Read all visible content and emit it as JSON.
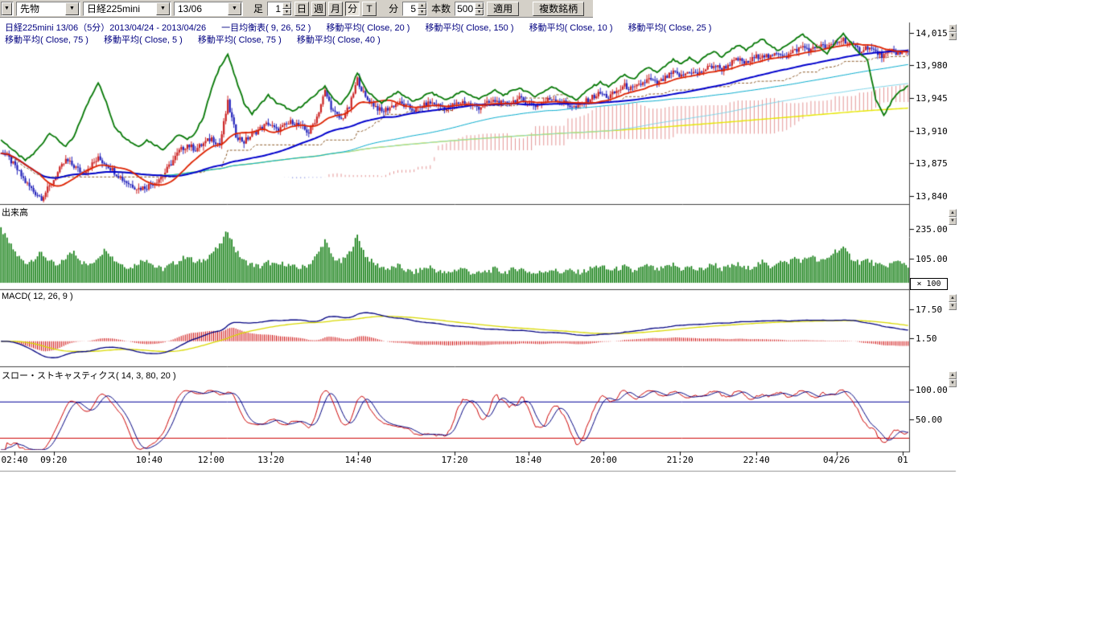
{
  "toolbar": {
    "stub_arrow": "▼",
    "market_select": "先物",
    "symbol_select": "日経225mini",
    "contract_select": "13/06",
    "bar_label": "足",
    "bar_interval": "1",
    "period_buttons": [
      "日",
      "週",
      "月",
      "分",
      "T"
    ],
    "minute_label": "分",
    "minute_interval": "5",
    "count_label": "本数",
    "count_value": "500",
    "apply_button": "適用",
    "multi_symbol_button": "複数銘柄"
  },
  "header": {
    "title": "日経225mini 13/06（5分）2013/04/24 - 2013/04/26",
    "row1": [
      "一目均衡表( 9, 26, 52 )",
      "移動平均( Close, 20 )",
      "移動平均( Close, 150 )",
      "移動平均( Close, 10 )",
      "移動平均( Close, 25 )"
    ],
    "row2": [
      "移動平均( Close, 75 )",
      "移動平均( Close, 5 )",
      "移動平均( Close, 75 )",
      "移動平均( Close, 40 )"
    ]
  },
  "panes": {
    "volume_label": "出来高",
    "macd_label": "MACD( 12, 26, 9 )",
    "stoch_label": "スロー・ストキャスティクス( 14, 3, 80, 20 )",
    "volume_multiplier": "× 100"
  },
  "chart_data": {
    "type": "candlestick",
    "title": "日経225mini 13/06（5分）2013/04/24 - 2013/04/26",
    "bars_displayed": 500,
    "price_pane": {
      "ylim": [
        13833,
        14026
      ],
      "yticks": [
        {
          "v": 14015,
          "label": "14,015"
        },
        {
          "v": 13980,
          "label": "13,980"
        },
        {
          "v": 13945,
          "label": "13,945"
        },
        {
          "v": 13910,
          "label": "13,910"
        },
        {
          "v": 13875,
          "label": "13,875"
        },
        {
          "v": 13840,
          "label": "13,840"
        }
      ],
      "close": [
        13888,
        13880,
        13868,
        13855,
        13845,
        13838,
        13850,
        13865,
        13878,
        13872,
        13865,
        13872,
        13880,
        13874,
        13866,
        13858,
        13852,
        13848,
        13850,
        13855,
        13862,
        13875,
        13888,
        13895,
        13890,
        13896,
        13902,
        13895,
        13940,
        13905,
        13898,
        13906,
        13912,
        13918,
        13910,
        13915,
        13920,
        13914,
        13908,
        13925,
        13952,
        13930,
        13922,
        13935,
        13965,
        13945,
        13938,
        13930,
        13935,
        13940,
        13936,
        13932,
        13936,
        13940,
        13937,
        13934,
        13938,
        13941,
        13938,
        13935,
        13939,
        13942,
        13938,
        13941,
        13944,
        13940,
        13937,
        13941,
        13945,
        13942,
        13938,
        13934,
        13940,
        13946,
        13950,
        13946,
        13952,
        13958,
        13954,
        13960,
        13965,
        13960,
        13966,
        13972,
        13968,
        13974,
        13970,
        13976,
        13980,
        13976,
        13982,
        13986,
        13982,
        13988,
        13992,
        13988,
        13994,
        13990,
        13996,
        14000,
        13996,
        14002,
        13998,
        14004,
        14008,
        14002,
        13996,
        14000,
        13994,
        13990,
        13996,
        13992,
        13995
      ],
      "overlay_green": [
        13900,
        13893,
        13885,
        13878,
        13885,
        13895,
        13908,
        13900,
        13893,
        13903,
        13925,
        13945,
        13962,
        13940,
        13915,
        13905,
        13898,
        13893,
        13900,
        13895,
        13890,
        13898,
        13906,
        13900,
        13908,
        13925,
        13955,
        13978,
        13992,
        13965,
        13940,
        13928,
        13938,
        13948,
        13940,
        13936,
        13930,
        13936,
        13942,
        13950,
        13958,
        13944,
        13938,
        13950,
        13972,
        13955,
        13946,
        13940,
        13946,
        13952,
        13946,
        13941,
        13946,
        13951,
        13947,
        13943,
        13948,
        13952,
        13948,
        13944,
        13949,
        13953,
        13948,
        13952,
        13956,
        13951,
        13947,
        13952,
        13957,
        13953,
        13948,
        13943,
        13950,
        13957,
        13962,
        13957,
        13964,
        13970,
        13965,
        13972,
        13978,
        13972,
        13979,
        13986,
        13981,
        13988,
        13983,
        13990,
        13995,
        13989,
        13996,
        14002,
        13996,
        14003,
        14008,
        14002,
        13995,
        14002,
        14008,
        14013,
        14006,
        13999,
        13993,
        14004,
        14014,
        14004,
        13992,
        13986,
        13944,
        13926,
        13942,
        13952,
        13958
      ]
    },
    "volume_pane": {
      "ylim": [
        0,
        330
      ],
      "yticks": [
        {
          "v": 235,
          "label": "235.00"
        },
        {
          "v": 105,
          "label": "105.00"
        }
      ],
      "multiplier_label": "× 100",
      "values": [
        235,
        175,
        120,
        85,
        105,
        130,
        95,
        70,
        110,
        140,
        90,
        75,
        115,
        150,
        100,
        80,
        65,
        90,
        105,
        70,
        60,
        80,
        95,
        120,
        85,
        100,
        130,
        160,
        230,
        140,
        95,
        80,
        70,
        90,
        75,
        85,
        70,
        65,
        80,
        120,
        185,
        110,
        90,
        130,
        205,
        120,
        85,
        70,
        60,
        75,
        55,
        45,
        60,
        70,
        50,
        40,
        55,
        65,
        45,
        40,
        50,
        60,
        45,
        55,
        65,
        50,
        40,
        50,
        60,
        45,
        55,
        45,
        50,
        65,
        75,
        55,
        60,
        70,
        50,
        65,
        75,
        55,
        65,
        80,
        60,
        70,
        55,
        65,
        85,
        60,
        70,
        80,
        60,
        75,
        90,
        70,
        95,
        85,
        110,
        95,
        120,
        90,
        105,
        140,
        150,
        110,
        90,
        100,
        80,
        70,
        85,
        95,
        75
      ]
    },
    "macd_pane": {
      "params": [
        12,
        26,
        9
      ],
      "ylim": [
        -13,
        27
      ],
      "yticks": [
        {
          "v": 17.5,
          "label": "17.50"
        },
        {
          "v": 1.5,
          "label": "1.50"
        }
      ]
    },
    "stoch_pane": {
      "params": [
        14,
        3,
        80,
        20
      ],
      "ylim": [
        0,
        133
      ],
      "yticks": [
        {
          "v": 100,
          "label": "100.00"
        },
        {
          "v": 50,
          "label": "50.00"
        }
      ],
      "upper_band": 80,
      "lower_band": 20
    },
    "x_ticks": [
      {
        "label": "02:40",
        "pos": 0.016
      },
      {
        "label": "09:20",
        "pos": 0.059
      },
      {
        "label": "10:40",
        "pos": 0.164
      },
      {
        "label": "12:00",
        "pos": 0.232
      },
      {
        "label": "13:20",
        "pos": 0.298
      },
      {
        "label": "14:40",
        "pos": 0.394
      },
      {
        "label": "17:20",
        "pos": 0.5
      },
      {
        "label": "18:40",
        "pos": 0.581
      },
      {
        "label": "20:00",
        "pos": 0.664
      },
      {
        "label": "21:20",
        "pos": 0.748
      },
      {
        "label": "22:40",
        "pos": 0.832
      },
      {
        "label": "04/26",
        "pos": 0.92
      },
      {
        "label": "01",
        "pos": 0.993
      }
    ],
    "colors": {
      "up_candle": "#cc2222",
      "down_candle": "#2222bb",
      "ma5": "#dd2200",
      "ma20": "#0000cc",
      "green_series": "#067806",
      "ma40": "#00aacc",
      "ma75": "#7fd4e8",
      "ma150": "#e6e600",
      "kijun": "#885522",
      "cloud_bull": "#cc3333",
      "cloud_bear": "#3344cc",
      "volume": "#0b7a0b",
      "macd_line": "#000080",
      "macd_signal": "#d8d800",
      "macd_hist": "#cc0000",
      "stoch_k": "#cc0000",
      "stoch_d": "#000080",
      "band_upper": "#000099",
      "band_lower": "#cc0000"
    }
  }
}
